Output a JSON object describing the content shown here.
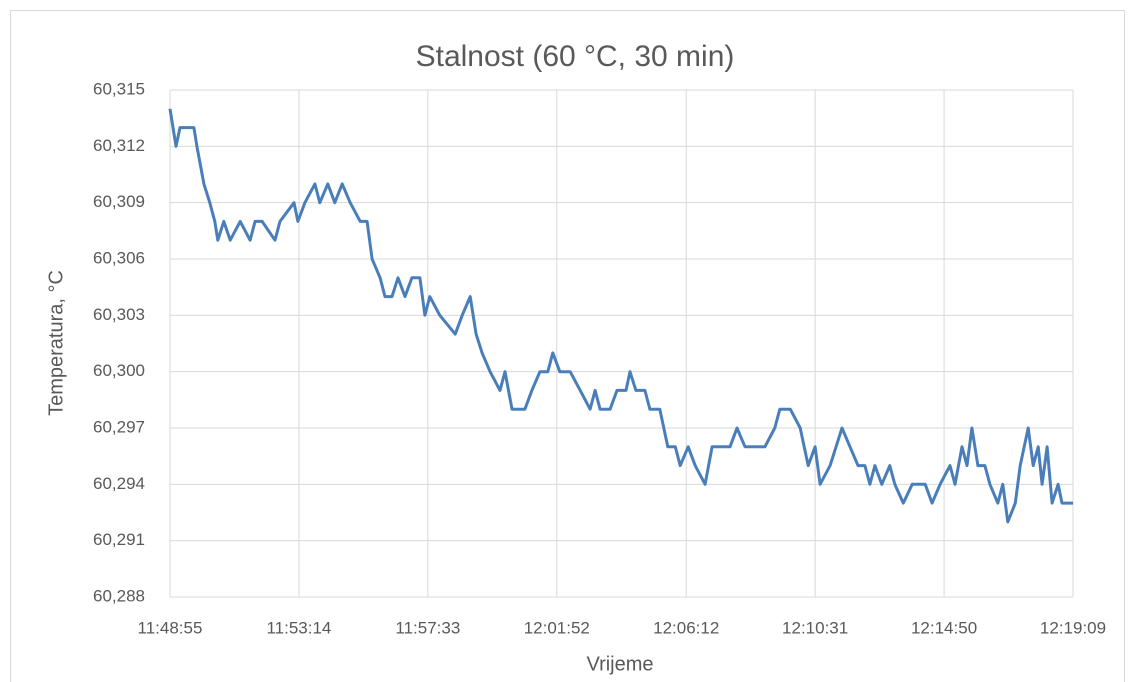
{
  "chart_data": {
    "type": "line",
    "title": "Stalnost (60 °C, 30 min)",
    "xlabel": "Vrijeme",
    "ylabel": "Temperatura, °C",
    "color": "#4a7ebb",
    "grid": true,
    "x": [
      "11:48:55",
      "11:49:07",
      "11:49:15",
      "11:49:43",
      "11:49:49",
      "11:50:03",
      "11:50:15",
      "11:50:25",
      "11:50:31",
      "11:50:43",
      "11:50:56",
      "11:51:16",
      "11:51:36",
      "11:51:46",
      "11:52:00",
      "11:52:26",
      "11:52:36",
      "11:53:04",
      "11:53:12",
      "11:53:26",
      "11:53:46",
      "11:53:56",
      "11:54:12",
      "11:54:26",
      "11:54:41",
      "11:54:57",
      "11:55:17",
      "11:55:31",
      "11:55:41",
      "11:55:57",
      "11:56:07",
      "11:56:21",
      "11:56:33",
      "11:56:47",
      "11:57:01",
      "11:57:17",
      "11:57:27",
      "11:57:37",
      "11:57:57",
      "11:58:28",
      "11:58:42",
      "11:58:58",
      "11:59:10",
      "11:59:22",
      "11:59:38",
      "11:59:58",
      "12:00:08",
      "12:00:22",
      "12:00:48",
      "12:01:02",
      "12:01:18",
      "12:01:34",
      "12:01:44",
      "12:01:58",
      "12:02:19",
      "12:02:39",
      "12:02:59",
      "12:03:09",
      "12:03:19",
      "12:03:39",
      "12:03:53",
      "12:04:11",
      "12:04:19",
      "12:04:31",
      "12:04:49",
      "12:04:59",
      "12:05:19",
      "12:05:35",
      "12:05:50",
      "12:06:00",
      "12:06:16",
      "12:06:30",
      "12:06:50",
      "12:07:04",
      "12:07:20",
      "12:07:40",
      "12:07:54",
      "12:08:10",
      "12:08:30",
      "12:08:50",
      "12:09:10",
      "12:09:20",
      "12:09:41",
      "12:10:01",
      "12:10:17",
      "12:10:31",
      "12:10:41",
      "12:11:01",
      "12:11:25",
      "12:11:41",
      "12:11:57",
      "12:12:11",
      "12:12:21",
      "12:12:31",
      "12:12:45",
      "12:13:01",
      "12:13:11",
      "12:13:28",
      "12:13:46",
      "12:14:12",
      "12:14:26",
      "12:14:42",
      "12:15:02",
      "12:15:12",
      "12:15:26",
      "12:15:36",
      "12:15:46",
      "12:15:58",
      "12:16:12",
      "12:16:22",
      "12:16:38",
      "12:16:48",
      "12:16:58",
      "12:17:13",
      "12:17:23",
      "12:17:39",
      "12:17:49",
      "12:17:59",
      "12:18:07",
      "12:18:17",
      "12:18:27",
      "12:18:39",
      "12:18:47",
      "12:18:59",
      "12:19:09"
    ],
    "values": [
      60.314,
      60.312,
      60.313,
      60.313,
      60.312,
      60.31,
      60.309,
      60.308,
      60.307,
      60.308,
      60.307,
      60.308,
      60.307,
      60.308,
      60.308,
      60.307,
      60.308,
      60.309,
      60.308,
      60.309,
      60.31,
      60.309,
      60.31,
      60.309,
      60.31,
      60.309,
      60.308,
      60.308,
      60.306,
      60.305,
      60.304,
      60.304,
      60.305,
      60.304,
      60.305,
      60.305,
      60.303,
      60.304,
      60.303,
      60.302,
      60.303,
      60.304,
      60.302,
      60.301,
      60.3,
      60.299,
      60.3,
      60.298,
      60.298,
      60.299,
      60.3,
      60.3,
      60.301,
      60.3,
      60.3,
      60.299,
      60.298,
      60.299,
      60.298,
      60.298,
      60.299,
      60.299,
      60.3,
      60.299,
      60.299,
      60.298,
      60.298,
      60.296,
      60.296,
      60.295,
      60.296,
      60.295,
      60.294,
      60.296,
      60.296,
      60.296,
      60.297,
      60.296,
      60.296,
      60.296,
      60.297,
      60.298,
      60.298,
      60.297,
      60.295,
      60.296,
      60.294,
      60.295,
      60.297,
      60.296,
      60.295,
      60.295,
      60.294,
      60.295,
      60.294,
      60.295,
      60.294,
      60.293,
      60.294,
      60.294,
      60.293,
      60.294,
      60.295,
      60.294,
      60.296,
      60.295,
      60.297,
      60.295,
      60.295,
      60.294,
      60.293,
      60.294,
      60.292,
      60.293,
      60.295,
      60.297,
      60.295,
      60.296,
      60.294,
      60.296,
      60.293,
      60.294,
      60.293,
      60.293,
      60.293
    ],
    "xlim": [
      "11:48:55",
      "12:19:09"
    ],
    "xticks": [
      "11:48:55",
      "11:53:14",
      "11:57:33",
      "12:01:52",
      "12:06:12",
      "12:10:31",
      "12:14:50",
      "12:19:09"
    ],
    "ylim": [
      60.288,
      60.315
    ],
    "yticks": [
      {
        "value": 60.288,
        "label": "60,288"
      },
      {
        "value": 60.291,
        "label": "60,291"
      },
      {
        "value": 60.294,
        "label": "60,294"
      },
      {
        "value": 60.297,
        "label": "60,297"
      },
      {
        "value": 60.3,
        "label": "60,300"
      },
      {
        "value": 60.303,
        "label": "60,303"
      },
      {
        "value": 60.306,
        "label": "60,306"
      },
      {
        "value": 60.309,
        "label": "60,309"
      },
      {
        "value": 60.312,
        "label": "60,312"
      },
      {
        "value": 60.315,
        "label": "60,315"
      }
    ]
  }
}
